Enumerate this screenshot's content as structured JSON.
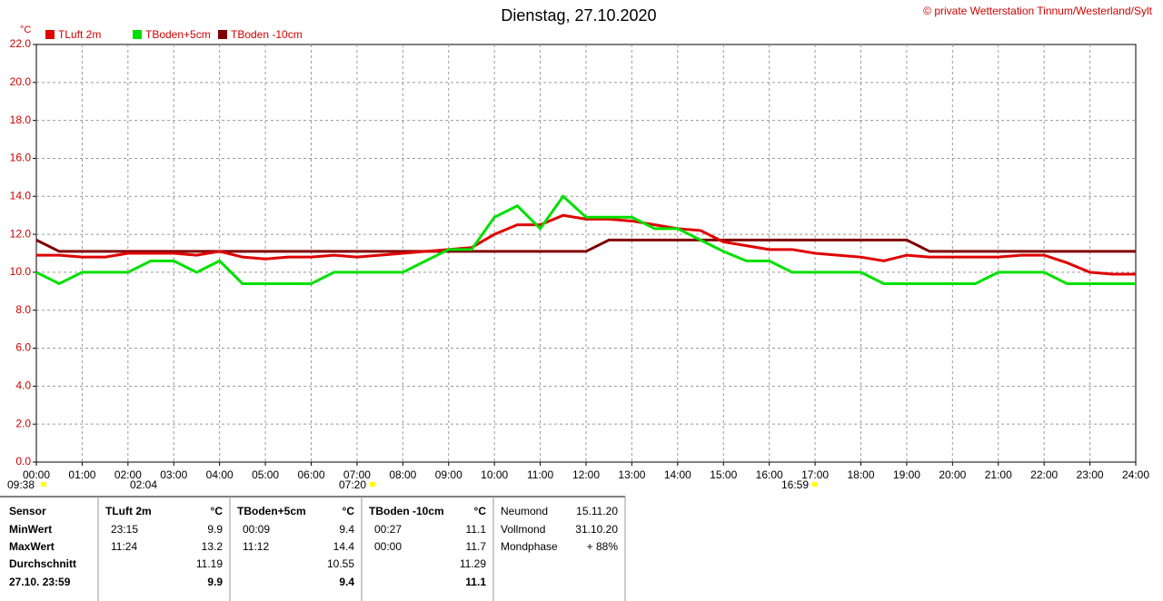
{
  "chart_data": {
    "type": "line",
    "title": "Dienstag, 27.10.2020",
    "copyright": "© private Wetterstation Tinnum/Westerland/Sylt",
    "y_unit": "°C",
    "x": [
      0,
      0.5,
      1,
      1.5,
      2,
      2.5,
      3,
      3.5,
      4,
      4.5,
      5,
      5.5,
      6,
      6.5,
      7,
      7.5,
      8,
      8.5,
      9,
      9.5,
      10,
      10.5,
      11,
      11.5,
      12,
      12.5,
      13,
      13.5,
      14,
      14.5,
      15,
      15.5,
      16,
      16.5,
      17,
      17.5,
      18,
      18.5,
      19,
      19.5,
      20,
      20.5,
      21,
      21.5,
      22,
      22.5,
      23,
      23.5,
      24
    ],
    "series": [
      {
        "name": "TLuft 2m",
        "color": "#e00000",
        "values": [
          10.9,
          10.9,
          10.8,
          10.8,
          11.0,
          11.0,
          11.0,
          10.9,
          11.1,
          10.8,
          10.7,
          10.8,
          10.8,
          10.9,
          10.8,
          10.9,
          11.0,
          11.1,
          11.2,
          11.3,
          12.0,
          12.5,
          12.5,
          13.0,
          12.8,
          12.8,
          12.7,
          12.5,
          12.3,
          12.2,
          11.6,
          11.4,
          11.2,
          11.2,
          11.0,
          10.9,
          10.8,
          10.6,
          10.9,
          10.8,
          10.8,
          10.8,
          10.8,
          10.9,
          10.9,
          10.5,
          10.0,
          9.9,
          9.9
        ]
      },
      {
        "name": "TBoden+5cm",
        "color": "#00e000",
        "values": [
          10.0,
          9.4,
          10.0,
          10.0,
          10.0,
          10.6,
          10.6,
          10.0,
          10.6,
          9.4,
          9.4,
          9.4,
          9.4,
          10.0,
          10.0,
          10.0,
          10.0,
          10.6,
          11.2,
          11.2,
          12.9,
          13.5,
          12.3,
          14.0,
          12.9,
          12.9,
          12.9,
          12.3,
          12.3,
          11.7,
          11.1,
          10.6,
          10.6,
          10.0,
          10.0,
          10.0,
          10.0,
          9.4,
          9.4,
          9.4,
          9.4,
          9.4,
          10.0,
          10.0,
          10.0,
          9.4,
          9.4,
          9.4,
          9.4
        ]
      },
      {
        "name": "TBoden -10cm",
        "color": "#800000",
        "values": [
          11.7,
          11.1,
          11.1,
          11.1,
          11.1,
          11.1,
          11.1,
          11.1,
          11.1,
          11.1,
          11.1,
          11.1,
          11.1,
          11.1,
          11.1,
          11.1,
          11.1,
          11.1,
          11.1,
          11.1,
          11.1,
          11.1,
          11.1,
          11.1,
          11.1,
          11.7,
          11.7,
          11.7,
          11.7,
          11.7,
          11.7,
          11.7,
          11.7,
          11.7,
          11.7,
          11.7,
          11.7,
          11.7,
          11.7,
          11.1,
          11.1,
          11.1,
          11.1,
          11.1,
          11.1,
          11.1,
          11.1,
          11.1,
          11.1
        ]
      }
    ],
    "xlim": [
      0,
      24
    ],
    "xticks": [
      {
        "value": 0,
        "label": "00:00"
      },
      {
        "value": 1,
        "label": "01:00"
      },
      {
        "value": 2,
        "label": "02:00"
      },
      {
        "value": 3,
        "label": "03:00"
      },
      {
        "value": 4,
        "label": "04:00"
      },
      {
        "value": 5,
        "label": "05:00"
      },
      {
        "value": 6,
        "label": "06:00"
      },
      {
        "value": 7,
        "label": "07:00"
      },
      {
        "value": 8,
        "label": "08:00"
      },
      {
        "value": 9,
        "label": "09:00"
      },
      {
        "value": 10,
        "label": "10:00"
      },
      {
        "value": 11,
        "label": "11:00"
      },
      {
        "value": 12,
        "label": "12:00"
      },
      {
        "value": 13,
        "label": "13:00"
      },
      {
        "value": 14,
        "label": "14:00"
      },
      {
        "value": 15,
        "label": "15:00"
      },
      {
        "value": 16,
        "label": "16:00"
      },
      {
        "value": 17,
        "label": "17:00"
      },
      {
        "value": 18,
        "label": "18:00"
      },
      {
        "value": 19,
        "label": "19:00"
      },
      {
        "value": 20,
        "label": "20:00"
      },
      {
        "value": 21,
        "label": "21:00"
      },
      {
        "value": 22,
        "label": "22:00"
      },
      {
        "value": 23,
        "label": "23:00"
      },
      {
        "value": 24,
        "label": "24:00"
      }
    ],
    "ylim": [
      0,
      22
    ],
    "yticks": [
      {
        "value": 0,
        "label": "0.0"
      },
      {
        "value": 2,
        "label": "2.0"
      },
      {
        "value": 4,
        "label": "4.0"
      },
      {
        "value": 6,
        "label": "6.0"
      },
      {
        "value": 8,
        "label": "8.0"
      },
      {
        "value": 10,
        "label": "10.0"
      },
      {
        "value": 12,
        "label": "12.0"
      },
      {
        "value": 14,
        "label": "14.0"
      },
      {
        "value": 16,
        "label": "16.0"
      },
      {
        "value": 18,
        "label": "18.0"
      },
      {
        "value": 20,
        "label": "20.0"
      },
      {
        "value": 22,
        "label": "22.0"
      }
    ],
    "grid": true,
    "time_marks": [
      "09:38",
      "02:04",
      "07:20",
      "16:59"
    ]
  },
  "stats": {
    "row_labels": [
      "Sensor",
      "MinWert",
      "MaxWert",
      "Durchschnitt",
      "27.10. 23:59"
    ],
    "blocks": [
      {
        "name": "TLuft 2m",
        "unit": "°C",
        "rows": [
          [
            "23:15",
            "9.9"
          ],
          [
            "11:24",
            "13.2"
          ],
          [
            null,
            "11.19"
          ],
          [
            null,
            "9.9"
          ]
        ]
      },
      {
        "name": "TBoden+5cm",
        "unit": "°C",
        "rows": [
          [
            "00:09",
            "9.4"
          ],
          [
            "11:12",
            "14.4"
          ],
          [
            null,
            "10.55"
          ],
          [
            null,
            "9.4"
          ]
        ]
      },
      {
        "name": "TBoden -10cm",
        "unit": "°C",
        "rows": [
          [
            "00:27",
            "11.1"
          ],
          [
            "00:00",
            "11.7"
          ],
          [
            null,
            "11.29"
          ],
          [
            null,
            "11.1"
          ]
        ]
      }
    ],
    "moon": [
      [
        "Neumond",
        "15.11.20"
      ],
      [
        "Vollmond",
        "31.10.20"
      ],
      [
        "Mondphase",
        "+ 88%"
      ]
    ]
  }
}
